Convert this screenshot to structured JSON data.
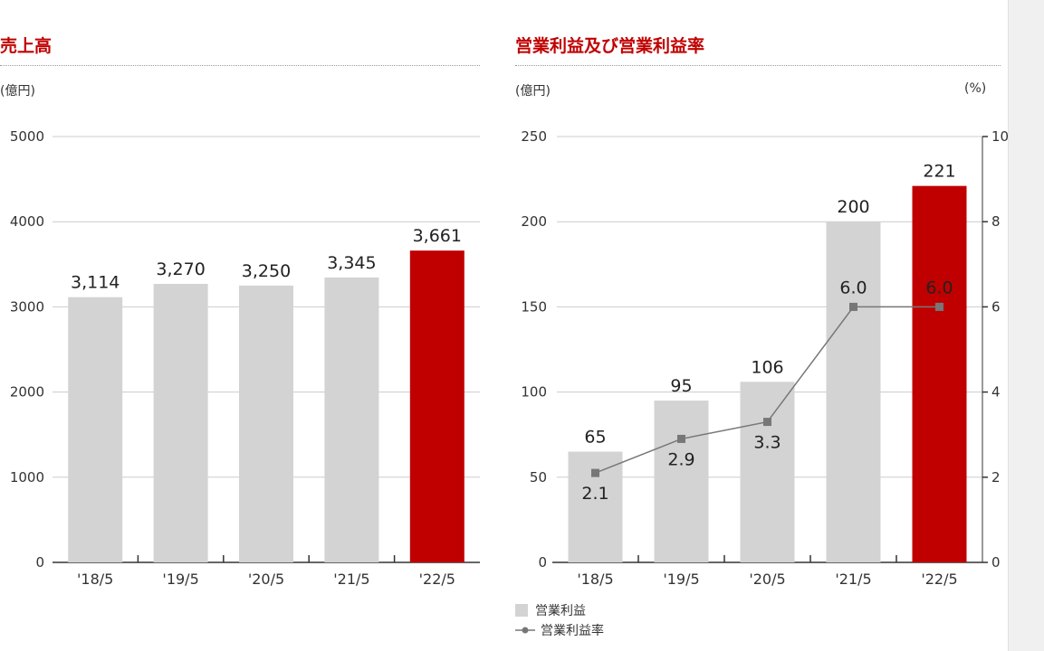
{
  "colors": {
    "title": "#c00000",
    "bar": "#d3d3d3",
    "highlight_bar": "#c00000",
    "line": "#777777",
    "grid": "#cccccc",
    "axis": "#333333"
  },
  "left_chart": {
    "title": "売上高",
    "unit_label": "(億円)"
  },
  "right_chart": {
    "title": "営業利益及び営業利益率",
    "unit_label_left": "(億円)",
    "unit_label_right": "(%)",
    "legend": {
      "bar_label": "営業利益",
      "line_label": "営業利益率"
    }
  },
  "chart_data": [
    {
      "type": "bar",
      "title": "売上高",
      "ylabel": "(億円)",
      "categories": [
        "'18/5",
        "'19/5",
        "'20/5",
        "'21/5",
        "'22/5"
      ],
      "values": [
        3114,
        3270,
        3250,
        3345,
        3661
      ],
      "value_labels": [
        "3,114",
        "3,270",
        "3,250",
        "3,345",
        "3,661"
      ],
      "highlight_index": 4,
      "ylim": [
        0,
        5000
      ],
      "yticks": [
        0,
        1000,
        2000,
        3000,
        4000,
        5000
      ],
      "grid": true
    },
    {
      "type": "bar",
      "title": "営業利益及び営業利益率",
      "ylabel": "(億円)",
      "y2label": "(%)",
      "categories": [
        "'18/5",
        "'19/5",
        "'20/5",
        "'21/5",
        "'22/5"
      ],
      "series": [
        {
          "name": "営業利益",
          "type": "bar",
          "axis": "left",
          "values": [
            65,
            95,
            106,
            200,
            221
          ],
          "value_labels": [
            "65",
            "95",
            "106",
            "200",
            "221"
          ]
        },
        {
          "name": "営業利益率",
          "type": "line",
          "axis": "right",
          "values": [
            2.1,
            2.9,
            3.3,
            6.0,
            6.0
          ],
          "value_labels": [
            "2.1",
            "2.9",
            "3.3",
            "6.0",
            "6.0"
          ]
        }
      ],
      "highlight_index": 4,
      "ylim": [
        0,
        250
      ],
      "yticks": [
        0,
        50,
        100,
        150,
        200,
        250
      ],
      "y2lim": [
        0,
        10
      ],
      "y2ticks": [
        0,
        2,
        4,
        6,
        8,
        10
      ],
      "grid": true,
      "legend_position": "bottom-left"
    }
  ]
}
